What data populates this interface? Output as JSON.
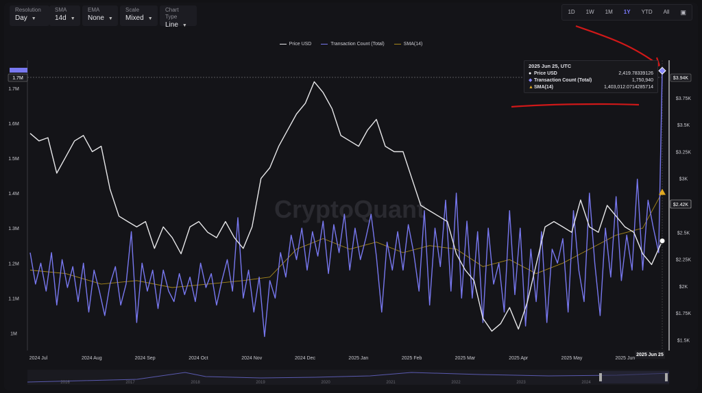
{
  "controls": [
    {
      "label": "Resolution",
      "value": "Day"
    },
    {
      "label": "SMA",
      "value": "14d"
    },
    {
      "label": "EMA",
      "value": "None"
    },
    {
      "label": "Scale",
      "value": "Mixed"
    },
    {
      "label": "Chart Type",
      "value": "Line"
    }
  ],
  "ranges": [
    "1D",
    "1W",
    "1M",
    "1Y",
    "YTD",
    "All"
  ],
  "active_range": "1Y",
  "watermark": "CryptoQuant",
  "tooltip": {
    "date": "2025 Jun 25, UTC",
    "rows": [
      {
        "marker": "●",
        "name": "Price USD",
        "value": "2,419.78339126"
      },
      {
        "marker": "◆",
        "name": "Transaction Count (Total)",
        "value": "1,750,940"
      },
      {
        "marker": "▲",
        "name": "SMA(14)",
        "value": "1,403,012.0714285714"
      }
    ]
  },
  "left_axis_flag": "1.7M",
  "right_axis_flags": {
    "tx": "$3.94K",
    "price": "$2.42K"
  },
  "date_flag": "2025 Jun 25",
  "navigator_years": [
    "2016",
    "2017",
    "2018",
    "2019",
    "2020",
    "2021",
    "2022",
    "2023",
    "2024"
  ],
  "colors": {
    "price": "#e8e8ea",
    "tx": "#7878f0",
    "sma": "#a8891c",
    "annotation": "#d01818"
  },
  "chart_data": {
    "type": "line",
    "legend": [
      "Price USD",
      "Transaction Count (Total)",
      "SMA(14)"
    ],
    "x_ticks": [
      "2024 Jul",
      "2024 Aug",
      "2024 Sep",
      "2024 Oct",
      "2024 Nov",
      "2024 Dec",
      "2025 Jan",
      "2025 Feb",
      "2025 Mar",
      "2025 Apr",
      "2025 May",
      "2025 Jun"
    ],
    "left_axis": {
      "ticks": [
        "1M",
        "1.1M",
        "1.2M",
        "1.3M",
        "1.4M",
        "1.5M",
        "1.6M",
        "1.7M"
      ],
      "range": [
        950000,
        1780000
      ]
    },
    "right_axis": {
      "ticks": [
        "$1.5K",
        "$1.75K",
        "$2K",
        "$2.25K",
        "$2.5K",
        "$2.75K",
        "$3K",
        "$3.25K",
        "$3.5K",
        "$3.75K"
      ],
      "range": [
        1400,
        4100
      ]
    },
    "series": [
      {
        "name": "Price USD",
        "axis": "right",
        "values": [
          [
            0,
            3420
          ],
          [
            5,
            3350
          ],
          [
            10,
            3380
          ],
          [
            15,
            3050
          ],
          [
            20,
            3200
          ],
          [
            25,
            3350
          ],
          [
            30,
            3400
          ],
          [
            35,
            3250
          ],
          [
            40,
            3300
          ],
          [
            45,
            2900
          ],
          [
            50,
            2650
          ],
          [
            55,
            2600
          ],
          [
            60,
            2550
          ],
          [
            65,
            2600
          ],
          [
            70,
            2350
          ],
          [
            75,
            2550
          ],
          [
            80,
            2450
          ],
          [
            85,
            2300
          ],
          [
            90,
            2550
          ],
          [
            95,
            2600
          ],
          [
            100,
            2500
          ],
          [
            105,
            2450
          ],
          [
            110,
            2600
          ],
          [
            115,
            2450
          ],
          [
            120,
            2350
          ],
          [
            125,
            2550
          ],
          [
            130,
            3000
          ],
          [
            135,
            3100
          ],
          [
            140,
            3300
          ],
          [
            145,
            3450
          ],
          [
            150,
            3600
          ],
          [
            155,
            3700
          ],
          [
            160,
            3900
          ],
          [
            165,
            3800
          ],
          [
            170,
            3650
          ],
          [
            175,
            3400
          ],
          [
            180,
            3350
          ],
          [
            185,
            3300
          ],
          [
            190,
            3450
          ],
          [
            195,
            3550
          ],
          [
            200,
            3300
          ],
          [
            205,
            3250
          ],
          [
            210,
            3250
          ],
          [
            215,
            3000
          ],
          [
            220,
            2750
          ],
          [
            225,
            2700
          ],
          [
            230,
            2650
          ],
          [
            235,
            2600
          ],
          [
            240,
            2300
          ],
          [
            245,
            2150
          ],
          [
            250,
            2050
          ],
          [
            255,
            1700
          ],
          [
            260,
            1580
          ],
          [
            265,
            1650
          ],
          [
            270,
            1800
          ],
          [
            275,
            1600
          ],
          [
            280,
            1850
          ],
          [
            285,
            2200
          ],
          [
            290,
            2550
          ],
          [
            295,
            2600
          ],
          [
            300,
            2550
          ],
          [
            305,
            2500
          ],
          [
            310,
            2800
          ],
          [
            315,
            2550
          ],
          [
            320,
            2500
          ],
          [
            325,
            2750
          ],
          [
            330,
            2650
          ],
          [
            335,
            2550
          ],
          [
            340,
            2500
          ],
          [
            345,
            2300
          ],
          [
            350,
            2200
          ],
          [
            356,
            2420
          ]
        ]
      },
      {
        "name": "Transaction Count (Total)",
        "axis": "left",
        "values": [
          [
            0,
            1230
          ],
          [
            3,
            1140
          ],
          [
            6,
            1200
          ],
          [
            9,
            1120
          ],
          [
            12,
            1230
          ],
          [
            15,
            1080
          ],
          [
            18,
            1210
          ],
          [
            21,
            1130
          ],
          [
            24,
            1190
          ],
          [
            27,
            1090
          ],
          [
            30,
            1200
          ],
          [
            33,
            1060
          ],
          [
            36,
            1180
          ],
          [
            39,
            1120
          ],
          [
            42,
            1050
          ],
          [
            45,
            1140
          ],
          [
            48,
            1190
          ],
          [
            51,
            1080
          ],
          [
            54,
            1140
          ],
          [
            57,
            1290
          ],
          [
            60,
            1030
          ],
          [
            63,
            1200
          ],
          [
            66,
            1120
          ],
          [
            69,
            1180
          ],
          [
            72,
            1070
          ],
          [
            75,
            1180
          ],
          [
            78,
            1120
          ],
          [
            81,
            1090
          ],
          [
            84,
            1170
          ],
          [
            87,
            1110
          ],
          [
            90,
            1160
          ],
          [
            93,
            1090
          ],
          [
            96,
            1200
          ],
          [
            99,
            1130
          ],
          [
            102,
            1170
          ],
          [
            105,
            1080
          ],
          [
            108,
            1150
          ],
          [
            111,
            1210
          ],
          [
            114,
            1120
          ],
          [
            117,
            1330
          ],
          [
            120,
            1100
          ],
          [
            123,
            1180
          ],
          [
            126,
            1060
          ],
          [
            129,
            1160
          ],
          [
            132,
            990
          ],
          [
            135,
            1150
          ],
          [
            138,
            1100
          ],
          [
            141,
            1230
          ],
          [
            144,
            1160
          ],
          [
            147,
            1280
          ],
          [
            150,
            1210
          ],
          [
            153,
            1300
          ],
          [
            156,
            1180
          ],
          [
            159,
            1290
          ],
          [
            162,
            1220
          ],
          [
            165,
            1320
          ],
          [
            168,
            1170
          ],
          [
            171,
            1310
          ],
          [
            174,
            1230
          ],
          [
            177,
            1340
          ],
          [
            180,
            1180
          ],
          [
            183,
            1300
          ],
          [
            186,
            1210
          ],
          [
            189,
            1270
          ],
          [
            192,
            1340
          ],
          [
            195,
            1220
          ],
          [
            198,
            1060
          ],
          [
            201,
            1260
          ],
          [
            204,
            1180
          ],
          [
            207,
            1290
          ],
          [
            210,
            1180
          ],
          [
            213,
            1310
          ],
          [
            216,
            1230
          ],
          [
            219,
            1120
          ],
          [
            222,
            1350
          ],
          [
            225,
            1080
          ],
          [
            228,
            1300
          ],
          [
            231,
            1190
          ],
          [
            234,
            1380
          ],
          [
            237,
            1120
          ],
          [
            240,
            1400
          ],
          [
            243,
            1100
          ],
          [
            246,
            1320
          ],
          [
            249,
            1100
          ],
          [
            252,
            1290
          ],
          [
            255,
            1030
          ],
          [
            258,
            1300
          ],
          [
            261,
            1140
          ],
          [
            264,
            1200
          ],
          [
            267,
            1060
          ],
          [
            270,
            1350
          ],
          [
            273,
            1110
          ],
          [
            276,
            1300
          ],
          [
            279,
            1020
          ],
          [
            282,
            1240
          ],
          [
            285,
            1090
          ],
          [
            288,
            1290
          ],
          [
            291,
            1030
          ],
          [
            294,
            1240
          ],
          [
            297,
            1200
          ],
          [
            300,
            1270
          ],
          [
            303,
            1060
          ],
          [
            306,
            1350
          ],
          [
            309,
            1180
          ],
          [
            312,
            1090
          ],
          [
            315,
            1400
          ],
          [
            318,
            1200
          ],
          [
            321,
            1050
          ],
          [
            324,
            1300
          ],
          [
            327,
            1160
          ],
          [
            330,
            1390
          ],
          [
            333,
            1150
          ],
          [
            336,
            1280
          ],
          [
            339,
            1180
          ],
          [
            342,
            1440
          ],
          [
            345,
            1180
          ],
          [
            348,
            1380
          ],
          [
            351,
            1300
          ],
          [
            354,
            1230
          ],
          [
            356,
            1750
          ]
        ]
      },
      {
        "name": "SMA(14)",
        "axis": "left",
        "values": [
          [
            0,
            1180
          ],
          [
            20,
            1170
          ],
          [
            40,
            1140
          ],
          [
            60,
            1150
          ],
          [
            80,
            1130
          ],
          [
            100,
            1140
          ],
          [
            120,
            1150
          ],
          [
            135,
            1160
          ],
          [
            150,
            1240
          ],
          [
            165,
            1270
          ],
          [
            180,
            1240
          ],
          [
            195,
            1260
          ],
          [
            210,
            1230
          ],
          [
            225,
            1250
          ],
          [
            240,
            1240
          ],
          [
            255,
            1190
          ],
          [
            270,
            1210
          ],
          [
            285,
            1170
          ],
          [
            300,
            1200
          ],
          [
            315,
            1240
          ],
          [
            330,
            1280
          ],
          [
            345,
            1300
          ],
          [
            356,
            1403
          ]
        ]
      }
    ]
  }
}
